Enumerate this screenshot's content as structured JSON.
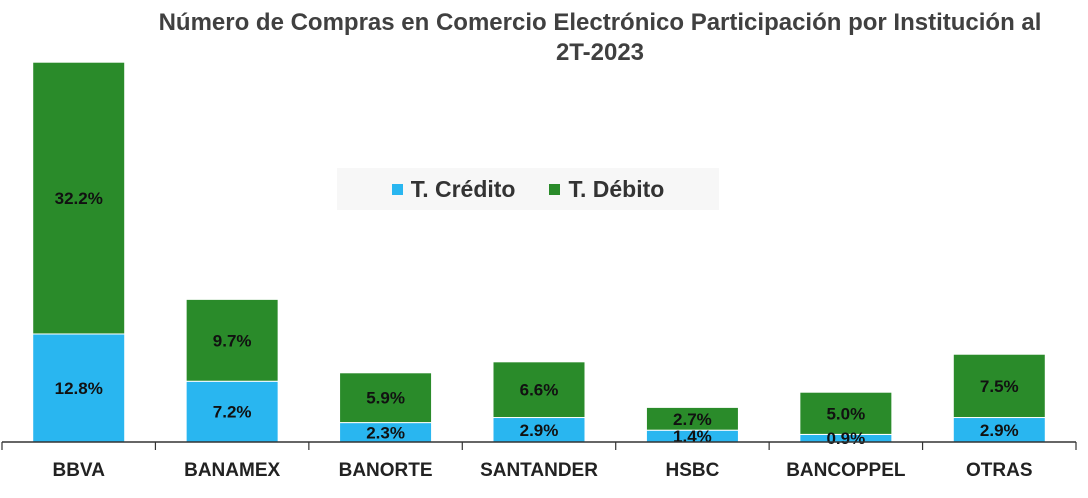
{
  "chart_data": {
    "type": "bar",
    "stacked": true,
    "title": "Número de Compras en Comercio Electrónico Participación por Institución al 2T-2023",
    "categories": [
      "BBVA",
      "BANAMEX",
      "BANORTE",
      "SANTANDER",
      "HSBC",
      "BANCOPPEL",
      "OTRAS"
    ],
    "series": [
      {
        "name": "T. Crédito",
        "color": "#29b6f0",
        "values": [
          12.8,
          7.2,
          2.3,
          2.9,
          1.4,
          0.9,
          2.9
        ],
        "labels": [
          "12.8%",
          "7.2%",
          "2.3%",
          "2.9%",
          "1.4%",
          "0.9%",
          "2.9%"
        ]
      },
      {
        "name": "T. Débito",
        "color": "#2a8b2a",
        "values": [
          32.2,
          9.7,
          5.9,
          6.6,
          2.7,
          5.0,
          7.5
        ],
        "labels": [
          "32.2%",
          "9.7%",
          "5.9%",
          "6.6%",
          "2.7%",
          "5.0%",
          "7.5%"
        ]
      }
    ],
    "ylim": [
      0,
      45
    ],
    "legend_position": "center",
    "grid": false
  }
}
